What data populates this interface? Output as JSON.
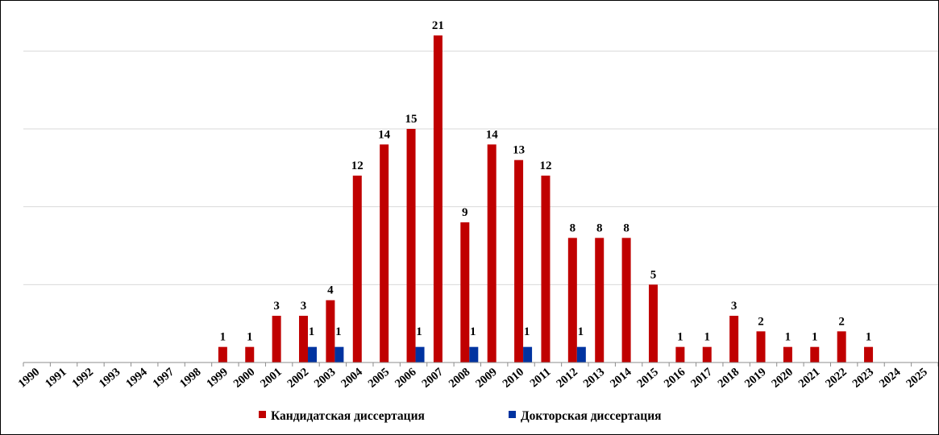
{
  "chart_data": {
    "type": "bar",
    "categories": [
      "1990",
      "1991",
      "1992",
      "1993",
      "1994",
      "1997",
      "1998",
      "1999",
      "2000",
      "2001",
      "2002",
      "2003",
      "2004",
      "2005",
      "2006",
      "2007",
      "2008",
      "2009",
      "2010",
      "2011",
      "2012",
      "2013",
      "2014",
      "2015",
      "2016",
      "2017",
      "2018",
      "2019",
      "2020",
      "2021",
      "2022",
      "2023",
      "2024",
      "2025"
    ],
    "series": [
      {
        "name": "Кандидатская диссертация",
        "color": "#c00000",
        "values": [
          0,
          0,
          0,
          0,
          0,
          0,
          0,
          1,
          1,
          3,
          3,
          4,
          12,
          14,
          15,
          21,
          9,
          14,
          13,
          12,
          8,
          8,
          8,
          5,
          1,
          1,
          3,
          2,
          1,
          1,
          2,
          1,
          0,
          0
        ]
      },
      {
        "name": "Докторская диссертация",
        "color": "#0033a0",
        "values": [
          0,
          0,
          0,
          0,
          0,
          0,
          0,
          0,
          0,
          0,
          1,
          1,
          0,
          0,
          1,
          0,
          1,
          0,
          1,
          0,
          1,
          0,
          0,
          0,
          0,
          0,
          0,
          0,
          0,
          0,
          0,
          0,
          0,
          0
        ]
      }
    ],
    "ylim": [
      0,
      21
    ],
    "grid": true,
    "legend": "bottom",
    "title": "",
    "xlabel": "",
    "ylabel": ""
  }
}
